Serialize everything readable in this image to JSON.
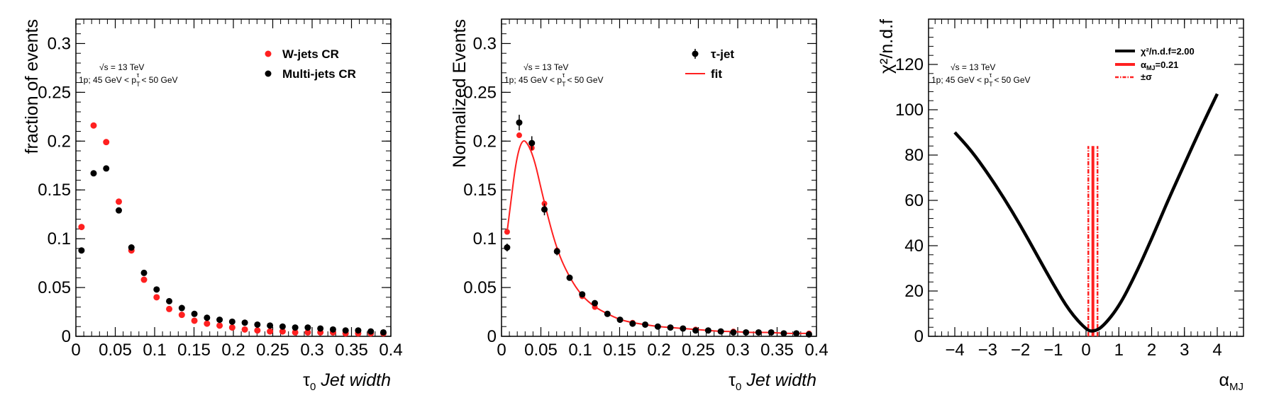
{
  "chart_data": [
    {
      "type": "scatter",
      "xlabel_sym": "τ",
      "xlabel_sub": "0",
      "xlabel_rest": " Jet width",
      "ylabel": "fraction of events",
      "xlim": [
        0,
        0.4
      ],
      "ylim": [
        0,
        0.325
      ],
      "x_ticks": [
        "0",
        "0.05",
        "0.1",
        "0.15",
        "0.2",
        "0.25",
        "0.3",
        "0.35",
        "0.4"
      ],
      "y_ticks": [
        "0",
        "0.05",
        "0.1",
        "0.15",
        "0.2",
        "0.25",
        "0.3"
      ],
      "annotation": {
        "line1": "√s = 13 TeV",
        "line2": "1p; 45 GeV < p",
        "line2_sup": "τ",
        "line2_sub": "T",
        "line2_end": " < 50 GeV"
      },
      "legend_position": "top-right",
      "x": [
        0.0071,
        0.0225,
        0.0385,
        0.0545,
        0.0705,
        0.0865,
        0.1025,
        0.1185,
        0.1345,
        0.1505,
        0.1665,
        0.1825,
        0.1985,
        0.2145,
        0.2305,
        0.2465,
        0.2625,
        0.2785,
        0.2945,
        0.3105,
        0.3265,
        0.3425,
        0.3585,
        0.3745,
        0.3905
      ],
      "series": [
        {
          "name": "W-jets CR",
          "color": "#ff2020",
          "values": [
            0.112,
            0.216,
            0.199,
            0.138,
            0.088,
            0.058,
            0.04,
            0.028,
            0.022,
            0.016,
            0.013,
            0.011,
            0.009,
            0.007,
            0.006,
            0.005,
            0.005,
            0.004,
            0.004,
            0.004,
            0.004,
            0.003,
            0.003,
            0.003,
            0.003
          ]
        },
        {
          "name": "Multi-jets CR",
          "color": "#000000",
          "values": [
            0.088,
            0.167,
            0.172,
            0.129,
            0.091,
            0.065,
            0.048,
            0.036,
            0.029,
            0.023,
            0.019,
            0.017,
            0.015,
            0.014,
            0.012,
            0.011,
            0.01,
            0.009,
            0.009,
            0.008,
            0.007,
            0.006,
            0.006,
            0.005,
            0.004
          ]
        }
      ]
    },
    {
      "type": "scatter",
      "xlabel_sym": "τ",
      "xlabel_sub": "0",
      "xlabel_rest": " Jet width",
      "ylabel": "Normalized Events",
      "xlim": [
        0,
        0.4
      ],
      "ylim": [
        0,
        0.325
      ],
      "x_ticks": [
        "0",
        "0.05",
        "0.1",
        "0.15",
        "0.2",
        "0.25",
        "0.3",
        "0.35",
        "0.4"
      ],
      "y_ticks": [
        "0",
        "0.05",
        "0.1",
        "0.15",
        "0.2",
        "0.25",
        "0.3"
      ],
      "annotation": {
        "line1": "√s = 13 TeV",
        "line2": "1p; 45 GeV < p",
        "line2_sup": "τ",
        "line2_sub": "T",
        "line2_end": " < 50 GeV"
      },
      "legend_position": "top-right",
      "x": [
        0.0071,
        0.0225,
        0.0385,
        0.0545,
        0.0705,
        0.0865,
        0.1025,
        0.1185,
        0.1345,
        0.1505,
        0.1665,
        0.1825,
        0.1985,
        0.2145,
        0.2305,
        0.2465,
        0.2625,
        0.2785,
        0.2945,
        0.3105,
        0.3265,
        0.3425,
        0.3585,
        0.3745,
        0.3905
      ],
      "series": [
        {
          "name": "τ-jet",
          "color": "#000000",
          "values": [
            0.091,
            0.219,
            0.198,
            0.13,
            0.087,
            0.06,
            0.043,
            0.034,
            0.023,
            0.017,
            0.013,
            0.012,
            0.01,
            0.009,
            0.008,
            0.006,
            0.006,
            0.005,
            0.004,
            0.004,
            0.004,
            0.004,
            0.003,
            0.003,
            0.002
          ],
          "errors": [
            0.004,
            0.008,
            0.007,
            0.006,
            0.004,
            0.003,
            0.003,
            0.003,
            0.002,
            0.002,
            0.002,
            0.002,
            0.001,
            0.001,
            0.001,
            0.001,
            0.001,
            0.001,
            0.001,
            0.001,
            0.001,
            0.001,
            0.001,
            0.001,
            0.001
          ]
        },
        {
          "name": "fit",
          "color": "#ff2020",
          "values": [
            0.107,
            0.206,
            0.193,
            0.136,
            0.088,
            0.06,
            0.041,
            0.03,
            0.023,
            0.017,
            0.014,
            0.012,
            0.01,
            0.009,
            0.008,
            0.007,
            0.006,
            0.005,
            0.005,
            0.004,
            0.004,
            0.004,
            0.003,
            0.003,
            0.003
          ]
        }
      ]
    },
    {
      "type": "line",
      "xlabel": "α",
      "xlabel_sub": "MJ",
      "ylabel": "χ²/n.d.f",
      "xlim": [
        -4.8,
        4.8
      ],
      "ylim": [
        0,
        140
      ],
      "x_ticks": [
        "−4",
        "−3",
        "−2",
        "−1",
        "0",
        "1",
        "2",
        "3",
        "4"
      ],
      "y_ticks": [
        "0",
        "20",
        "40",
        "60",
        "80",
        "100",
        "120"
      ],
      "annotation": {
        "line1": "√s = 13 TeV",
        "line2": "1p; 45 GeV < p",
        "line2_sup": "τ",
        "line2_sub": "T",
        "line2_end": " < 50 GeV"
      },
      "legend_position": "top-right",
      "legend": [
        {
          "label": "χ²/n.d.f=2.00",
          "color": "#000000"
        },
        {
          "label": "α",
          "sub": "MJ",
          "rest": "=0.21",
          "color": "#ff2020"
        },
        {
          "label": "±σ",
          "color": "#ff2020"
        }
      ],
      "curve": {
        "name": "χ²/n.d.f",
        "x": [
          -4,
          -3.5,
          -3,
          -2.5,
          -2,
          -1.5,
          -1,
          -0.5,
          0,
          0.21,
          0.5,
          1,
          1.5,
          2,
          2.5,
          3,
          3.5,
          4
        ],
        "values": [
          90,
          82,
          72,
          61,
          49,
          36,
          23,
          11,
          3,
          2,
          4,
          13,
          27,
          43,
          60,
          76,
          92,
          107
        ]
      },
      "best_fit": {
        "alpha": 0.21,
        "sigma_low": 0.07,
        "sigma_high": 0.35,
        "line_top": 84
      }
    }
  ]
}
